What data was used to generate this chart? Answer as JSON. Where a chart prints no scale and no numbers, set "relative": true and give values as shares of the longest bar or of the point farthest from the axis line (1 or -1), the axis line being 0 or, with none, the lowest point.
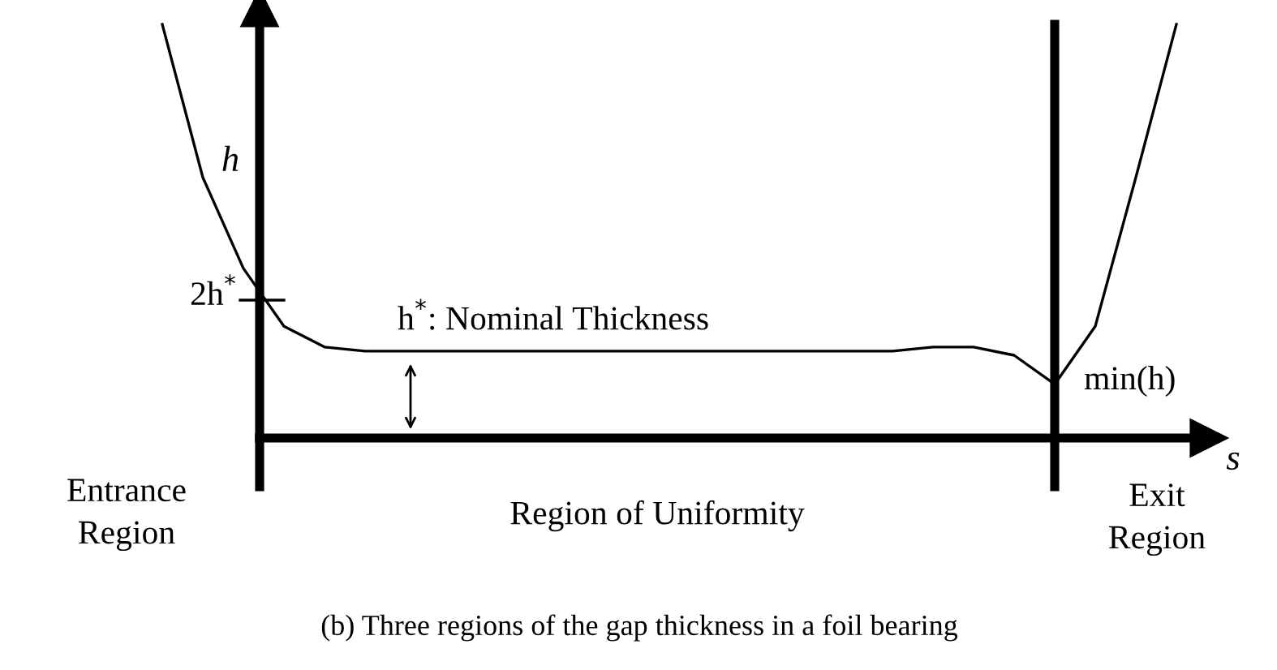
{
  "chart_data": {
    "type": "line",
    "relative": true,
    "xlabel": "s",
    "ylabel": "h",
    "categories": [
      null,
      null,
      null,
      null,
      null,
      null,
      null,
      null,
      null,
      null,
      null,
      null,
      null,
      null,
      null,
      null,
      null,
      null,
      null,
      null,
      null,
      null,
      null,
      null,
      null,
      null
    ],
    "series": [
      {
        "color": "#000000",
        "values": [
          1.0,
          0.63,
          0.41,
          0.27,
          0.22,
          0.21,
          0.21,
          0.21,
          0.21,
          0.21,
          0.21,
          0.21,
          0.21,
          0.21,
          0.21,
          0.21,
          0.21,
          0.21,
          0.21,
          0.22,
          0.22,
          0.2,
          0.13,
          0.27,
          0.63,
          1.0
        ]
      }
    ],
    "annotations": [
      "2h$^{*}$",
      "h$^{*}$: Nominal Thickness",
      "min(h)",
      "Entrance\nRegion",
      "Region of Uniformity",
      "Exit\nRegion",
      "(b) Three regions of the gap thickness in a foil bearing"
    ],
    "legend": false,
    "marker": "none",
    "line_style": "solid"
  }
}
